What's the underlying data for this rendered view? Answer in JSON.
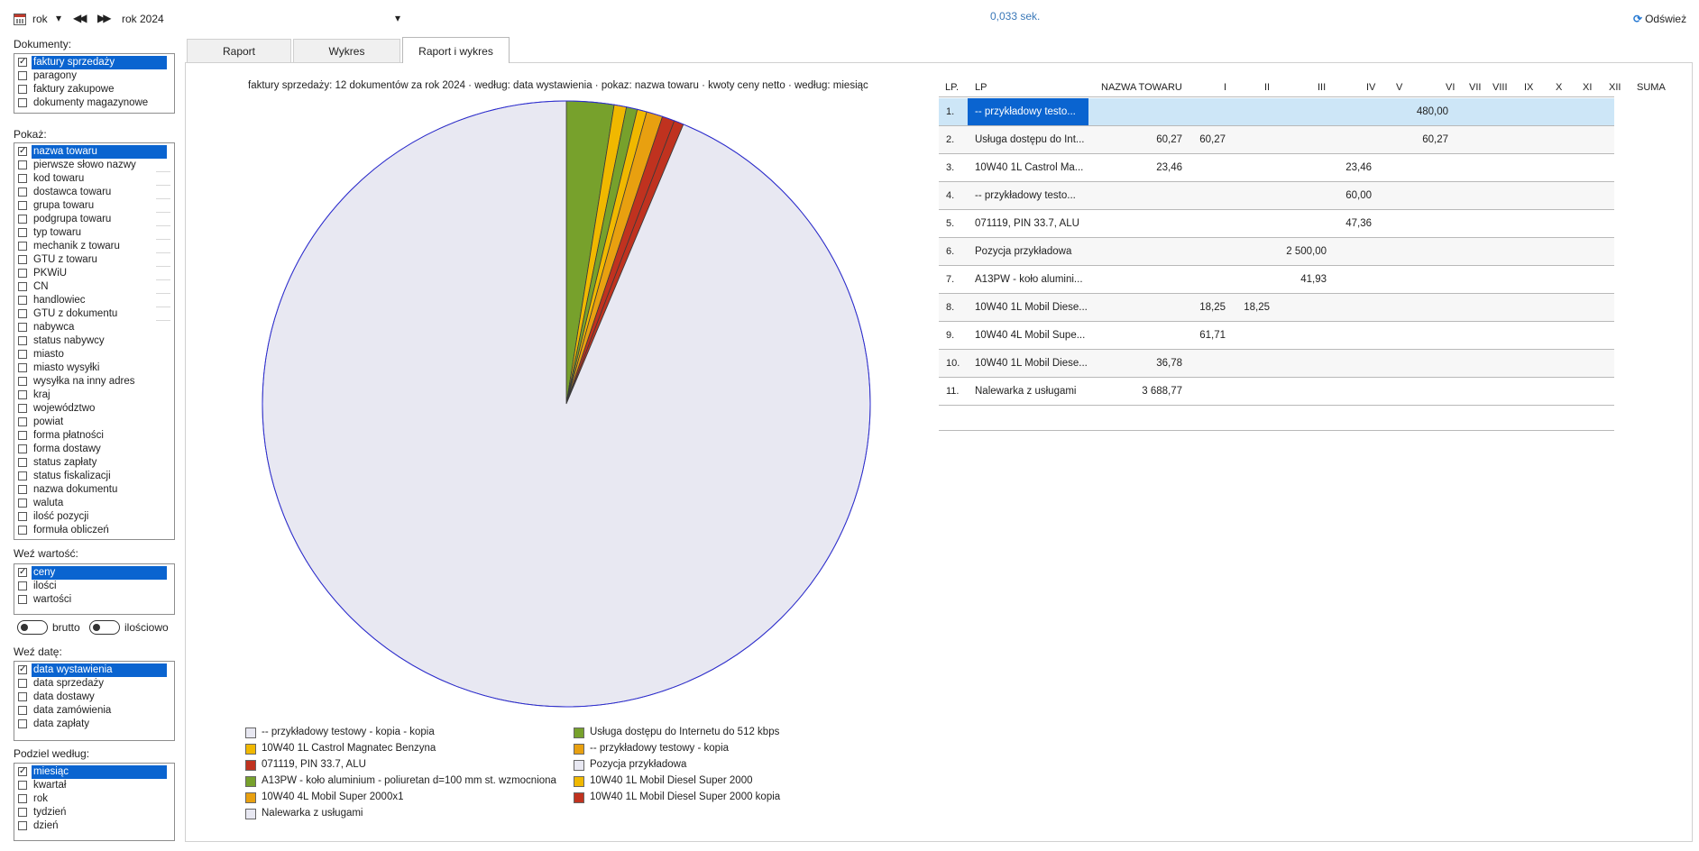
{
  "toolbar": {
    "period_type": "rok",
    "period_value": "rok 2024",
    "timing": "0,033 sek.",
    "refresh_label": "Odśwież",
    "icons": [
      "calendar-icon",
      "dropdown-icon",
      "previous-icon",
      "next-icon",
      "refresh-icon"
    ]
  },
  "left": {
    "documents": {
      "title": "Dokumenty:",
      "items": [
        {
          "label": "faktury sprzedaży",
          "checked": true,
          "selected": true
        },
        {
          "label": "paragony",
          "checked": false
        },
        {
          "label": "faktury zakupowe",
          "checked": false
        },
        {
          "label": "dokumenty magazynowe",
          "checked": false
        }
      ]
    },
    "show": {
      "title": "Pokaż:",
      "items": [
        {
          "label": "nazwa towaru",
          "checked": true,
          "selected": true
        },
        {
          "label": "pierwsze słowo nazwy",
          "checked": false
        },
        {
          "label": "kod towaru",
          "checked": false
        },
        {
          "label": "dostawca towaru",
          "checked": false
        },
        {
          "label": "grupa towaru",
          "checked": false
        },
        {
          "label": "podgrupa towaru",
          "checked": false
        },
        {
          "label": "typ towaru",
          "checked": false
        },
        {
          "label": "mechanik z towaru",
          "checked": false
        },
        {
          "label": "GTU z towaru",
          "checked": false
        },
        {
          "label": "PKWiU",
          "checked": false
        },
        {
          "label": "CN",
          "checked": false
        },
        {
          "label": "handlowiec",
          "checked": false
        },
        {
          "label": "GTU z dokumentu",
          "checked": false
        },
        {
          "label": "nabywca",
          "checked": false
        },
        {
          "label": "status nabywcy",
          "checked": false
        },
        {
          "label": "miasto",
          "checked": false
        },
        {
          "label": "miasto wysyłki",
          "checked": false
        },
        {
          "label": "wysyłka na inny adres",
          "checked": false
        },
        {
          "label": "kraj",
          "checked": false
        },
        {
          "label": "województwo",
          "checked": false
        },
        {
          "label": "powiat",
          "checked": false
        },
        {
          "label": "forma płatności",
          "checked": false
        },
        {
          "label": "forma dostawy",
          "checked": false
        },
        {
          "label": "status zapłaty",
          "checked": false
        },
        {
          "label": "status fiskalizacji",
          "checked": false
        },
        {
          "label": "nazwa dokumentu",
          "checked": false
        },
        {
          "label": "waluta",
          "checked": false
        },
        {
          "label": "ilość pozycji",
          "checked": false
        },
        {
          "label": "formuła obliczeń",
          "checked": false
        }
      ]
    },
    "values": {
      "title": "Weź wartość:",
      "items": [
        {
          "label": "ceny",
          "checked": true,
          "selected": true
        },
        {
          "label": "ilości",
          "checked": false
        },
        {
          "label": "wartości",
          "checked": false
        }
      ]
    },
    "toggles": {
      "brutto": "brutto",
      "ilosciowo": "ilościowo"
    },
    "date": {
      "title": "Weź datę:",
      "items": [
        {
          "label": "data wystawienia",
          "checked": true,
          "selected": true
        },
        {
          "label": "data sprzedaży",
          "checked": false
        },
        {
          "label": "data dostawy",
          "checked": false
        },
        {
          "label": "data zamówienia",
          "checked": false
        },
        {
          "label": "data zapłaty",
          "checked": false
        }
      ]
    },
    "split": {
      "title": "Podziel według:",
      "items": [
        {
          "label": "miesiąc",
          "checked": true,
          "selected": true
        },
        {
          "label": "kwartał",
          "checked": false
        },
        {
          "label": "rok",
          "checked": false
        },
        {
          "label": "tydzień",
          "checked": false
        },
        {
          "label": "dzień",
          "checked": false
        }
      ]
    }
  },
  "tabs": [
    {
      "label": "Raport",
      "active": false
    },
    {
      "label": "Wykres",
      "active": false
    },
    {
      "label": "Raport i wykres",
      "active": true
    }
  ],
  "chart_data": {
    "type": "pie",
    "title": "faktury sprzedaży: 12 dokumentów za rok 2024 · według: data wystawienia · pokaz: nazwa towaru · kwoty ceny netto · według: miesiąc",
    "slices": [
      {
        "label": "Usługa dostępu do Internetu do 512 kbps",
        "value": 180.81,
        "color": "#77a12c"
      },
      {
        "label": "10W40 1L Castrol Magnatec Benzyna",
        "value": 46.92,
        "color": "#f0b800"
      },
      {
        "label": "A13PW - koło aluminium - poliuretan d=100 mm st. wzmocniona",
        "value": 41.93,
        "color": "#77a12c"
      },
      {
        "label": "10W40 1L Mobil Diesel Super 2000",
        "value": 36.5,
        "color": "#f0b800"
      },
      {
        "label": "10W40 4L Mobil Super 2000x1",
        "value": 61.71,
        "color": "#e8a010"
      },
      {
        "label": "071119, PIN 33.7, ALU",
        "value": 47.36,
        "color": "#c0321f"
      },
      {
        "label": "10W40 1L Mobil Diesel Super 2000 kopia",
        "value": 36.78,
        "color": "#c0321f"
      },
      {
        "label": "-- przykładowy testowy - kopia - kopia / -- przykładowy testowy - kopia / Pozycja przykładowa / Nalewarka z usługami",
        "value": 6728.77,
        "color": "#e8e8f2"
      }
    ],
    "pie_border_color": "#2b2bd6",
    "legend": [
      {
        "label": "-- przykładowy testowy - kopia - kopia",
        "color": "#e8e8f2"
      },
      {
        "label": "Usługa dostępu do Internetu do 512 kbps",
        "color": "#77a12c"
      },
      {
        "label": "10W40 1L Castrol Magnatec Benzyna",
        "color": "#f0b800"
      },
      {
        "label": "-- przykładowy testowy - kopia",
        "color": "#e8a010"
      },
      {
        "label": "071119, PIN 33.7, ALU",
        "color": "#c0321f"
      },
      {
        "label": "Pozycja przykładowa",
        "color": "#e8e8f2"
      },
      {
        "label": "A13PW - koło aluminium - poliuretan d=100 mm st. wzmocniona",
        "color": "#77a12c"
      },
      {
        "label": "10W40 1L Mobil Diesel Super 2000",
        "color": "#f0b800"
      },
      {
        "label": "10W40 4L Mobil Super 2000x1",
        "color": "#e8a010"
      },
      {
        "label": "10W40 1L Mobil Diesel Super 2000 kopia",
        "color": "#c0321f"
      },
      {
        "label": "Nalewarka z usługami",
        "color": "#e8e8f2"
      }
    ]
  },
  "table": {
    "columns": [
      "LP.",
      "LP",
      "NAZWA TOWARU",
      "I",
      "II",
      "III",
      "IV",
      "V",
      "VI",
      "VII",
      "VIII",
      "IX",
      "X",
      "XI",
      "XII",
      "SUMA"
    ],
    "rows": [
      {
        "lp": "1.",
        "name": "-- przykładowy testo...",
        "values": {
          "VI": "480,00"
        }
      },
      {
        "lp": "2.",
        "name": "Usługa dostępu do Int...",
        "values": {
          "NAZWA TOWARU": "60,27",
          "I": "60,27",
          "VI": "60,27"
        }
      },
      {
        "lp": "3.",
        "name": "10W40 1L Castrol Ma...",
        "values": {
          "NAZWA TOWARU": "23,46",
          "IV": "23,46"
        }
      },
      {
        "lp": "4.",
        "name": "-- przykładowy testo...",
        "values": {
          "IV": "60,00"
        }
      },
      {
        "lp": "5.",
        "name": "071119, PIN 33.7, ALU",
        "values": {
          "IV": "47,36"
        }
      },
      {
        "lp": "6.",
        "name": "Pozycja przykładowa",
        "values": {
          "III": "2 500,00"
        }
      },
      {
        "lp": "7.",
        "name": "A13PW - koło alumini...",
        "values": {
          "III": "41,93"
        }
      },
      {
        "lp": "8.",
        "name": "10W40 1L Mobil Diese...",
        "values": {
          "I": "18,25",
          "II": "18,25"
        }
      },
      {
        "lp": "9.",
        "name": "10W40 4L Mobil Supe...",
        "values": {
          "I": "61,71"
        }
      },
      {
        "lp": "10.",
        "name": "10W40 1L Mobil Diese...",
        "values": {
          "NAZWA TOWARU": "36,78"
        }
      },
      {
        "lp": "11.",
        "name": "Nalewarka z usługami",
        "values": {
          "NAZWA TOWARU": "3 688,77"
        }
      }
    ]
  }
}
